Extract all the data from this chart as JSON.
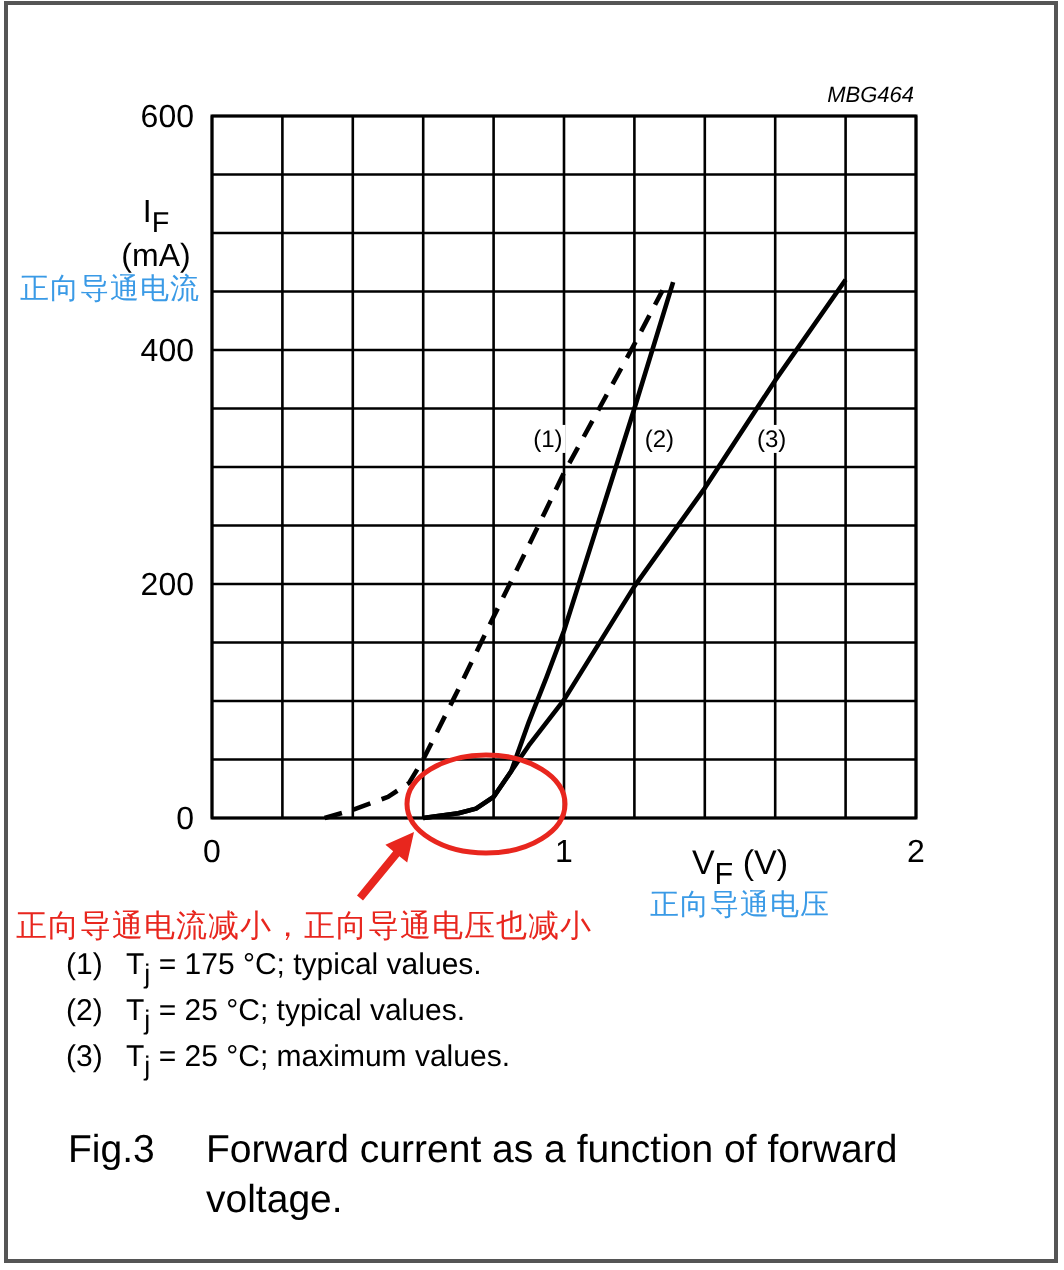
{
  "chart_data": {
    "type": "line",
    "title": "Fig.3 Forward current as a function of forward voltage.",
    "xlabel": "V$_{F}$ (V)",
    "ylabel": "I$_{F}$\n(mA)",
    "annotations": [
      "MBG464",
      "正向导通电流",
      "正向导通电压",
      "正向导通电流减小，正向导通电压也减小",
      "(1) T$_{j}$ = 175 °C; typical values.",
      "(2) T$_{j}$ = 25 °C; typical values.",
      "(3) T$_{j}$ = 25 °C; maximum values."
    ],
    "series": [
      {
        "name": "(1)",
        "color": "#000000",
        "line_style": "dashed",
        "x": [
          0.32,
          0.4,
          0.5,
          0.56,
          0.6,
          0.7,
          0.8,
          0.9,
          1.0,
          1.1,
          1.2,
          1.28
        ],
        "values": [
          0,
          7,
          18,
          30,
          50,
          110,
          172,
          233,
          295,
          350,
          405,
          451
        ]
      },
      {
        "name": "(2)",
        "color": "#000000",
        "x": [
          0.6,
          0.7,
          0.75,
          0.8,
          0.85,
          0.9,
          0.95,
          1.0,
          1.1,
          1.2,
          1.31
        ],
        "values": [
          0,
          4,
          8,
          18,
          40,
          82,
          120,
          160,
          255,
          350,
          458
        ]
      },
      {
        "name": "(3)",
        "color": "#000000",
        "x": [
          0.6,
          0.7,
          0.75,
          0.8,
          0.85,
          0.9,
          1.0,
          1.2,
          1.4,
          1.6,
          1.8
        ],
        "values": [
          0,
          4,
          8,
          18,
          40,
          62,
          101,
          198,
          282,
          374,
          460
        ]
      }
    ],
    "xlim": [
      0,
      2
    ],
    "xticks": [
      0,
      {
        "value": 0.2,
        "label": null
      },
      {
        "value": 0.4,
        "label": null
      },
      {
        "value": 0.6,
        "label": null
      },
      {
        "value": 0.8,
        "label": null
      },
      1,
      {
        "value": 1.2,
        "label": null
      },
      {
        "value": 1.4,
        "label": null
      },
      {
        "value": 1.6,
        "label": null
      },
      {
        "value": 1.8,
        "label": null
      },
      2
    ],
    "ylim": [
      0,
      600
    ],
    "yticks": [
      0,
      {
        "value": 50,
        "label": null
      },
      {
        "value": 100,
        "label": null
      },
      {
        "value": 150,
        "label": null
      },
      200,
      {
        "value": 250,
        "label": null
      },
      {
        "value": 300,
        "label": null
      },
      {
        "value": 350,
        "label": null
      },
      400,
      {
        "value": 450,
        "label": null
      },
      {
        "value": 500,
        "label": null
      },
      {
        "value": 550,
        "label": null
      },
      600
    ],
    "grid": true,
    "line_style": "solid"
  }
}
